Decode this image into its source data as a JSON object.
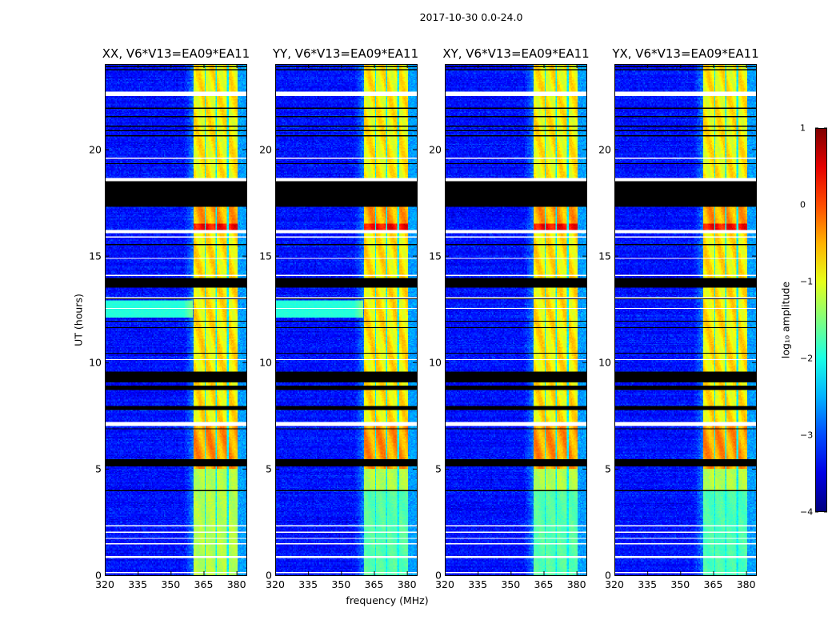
{
  "chart_data": {
    "type": "heatmap",
    "suptitle": "2017-10-30 0.0-24.0",
    "xlabel": "frequency (MHz)",
    "ylabel": "UT (hours)",
    "xlim": [
      320,
      384.5
    ],
    "ylim": [
      0,
      24
    ],
    "xticks": [
      "320",
      "335",
      "350",
      "365",
      "380"
    ],
    "xtick_values": [
      320,
      335,
      350,
      365,
      380
    ],
    "yticks": [
      "0",
      "5",
      "10",
      "15",
      "20"
    ],
    "ytick_values": [
      0,
      5,
      10,
      15,
      20
    ],
    "panels": [
      {
        "title": "XX, V6*V13=EA09*EA11",
        "low_band_level": -1.25,
        "cyan_background_12h": true
      },
      {
        "title": "YY, V6*V13=EA09*EA11",
        "low_band_level": -1.7,
        "cyan_background_12h": true
      },
      {
        "title": "XY, V6*V13=EA09*EA11",
        "low_band_level": -1.7,
        "cyan_background_12h": false
      },
      {
        "title": "YX, V6*V13=EA09*EA11",
        "low_band_level": -1.75,
        "cyan_background_12h": false
      }
    ],
    "background_level": -3.3,
    "band_mhz": [
      360.6,
      380.4
    ],
    "band_gaps_mhz": [
      365.7,
      370.9,
      376.0
    ],
    "band_levels_by_time": [
      {
        "from": 5,
        "to": 7,
        "level": -0.4
      },
      {
        "from": 7,
        "to": 16.2,
        "level": -0.8
      },
      {
        "from": 16.2,
        "to": 16.5,
        "level": 0.35
      },
      {
        "from": 16.5,
        "to": 17.3,
        "level": -0.45
      },
      {
        "from": 17.3,
        "to": 24,
        "level": -0.85
      }
    ],
    "flagged_no_data_hours": [
      [
        22.5,
        22.7
      ],
      [
        19.55,
        19.6
      ],
      [
        18.5,
        18.67
      ],
      [
        18.08,
        18.12
      ],
      [
        17.48,
        17.52
      ],
      [
        17.28,
        17.32
      ],
      [
        16.05,
        16.2
      ],
      [
        15.84,
        15.88
      ],
      [
        15.68,
        15.72
      ],
      [
        14.85,
        14.9
      ],
      [
        14.03,
        14.08
      ],
      [
        13.18,
        13.22
      ],
      [
        13.01,
        13.05
      ],
      [
        12.48,
        12.53
      ],
      [
        12.03,
        12.07
      ],
      [
        11.78,
        11.82
      ],
      [
        10.12,
        10.17
      ],
      [
        9.58,
        9.62
      ],
      [
        8.48,
        8.52
      ],
      [
        8.38,
        8.42
      ],
      [
        7.53,
        7.57
      ],
      [
        7.38,
        7.42
      ],
      [
        7.0,
        7.2
      ],
      [
        4.78,
        4.82
      ],
      [
        4.53,
        4.57
      ],
      [
        3.48,
        3.52
      ],
      [
        3.38,
        3.42
      ],
      [
        3.28,
        3.32
      ],
      [
        3.18,
        3.22
      ],
      [
        3.08,
        3.12
      ],
      [
        2.31,
        2.35
      ],
      [
        2.01,
        2.05
      ],
      [
        1.71,
        1.75
      ],
      [
        1.44,
        1.48
      ],
      [
        0.8,
        0.9
      ],
      [
        0.43,
        0.47
      ],
      [
        0.09,
        0.13
      ]
    ],
    "flagged_zero_hours": [
      [
        23.85,
        23.9
      ],
      [
        23.7,
        23.74
      ],
      [
        21.9,
        21.95
      ],
      [
        21.5,
        21.55
      ],
      [
        21.05,
        21.1
      ],
      [
        20.85,
        20.9
      ],
      [
        20.6,
        20.65
      ],
      [
        19.3,
        19.37
      ],
      [
        17.3,
        18.5
      ],
      [
        15.5,
        15.55
      ],
      [
        13.5,
        13.95
      ],
      [
        12.95,
        12.98
      ],
      [
        11.9,
        11.95
      ],
      [
        11.6,
        11.65
      ],
      [
        10.4,
        10.45
      ],
      [
        9.05,
        9.55
      ],
      [
        8.7,
        8.9
      ],
      [
        7.75,
        7.95
      ],
      [
        6.85,
        6.9
      ],
      [
        6.18,
        6.22
      ],
      [
        5.78,
        5.82
      ],
      [
        5.1,
        5.45
      ],
      [
        3.96,
        4.0
      ]
    ],
    "colorbar": {
      "label": "log₁₀ amplitude",
      "range": [
        -4,
        1
      ],
      "ticks": [
        "−4",
        "−3",
        "−2",
        "−1",
        "0",
        "1"
      ],
      "tick_values": [
        -4,
        -3,
        -2,
        -1,
        0,
        1
      ],
      "colormap": "jet"
    }
  }
}
